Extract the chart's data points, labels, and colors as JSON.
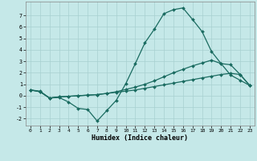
{
  "xlabel": "Humidex (Indice chaleur)",
  "bg_color": "#c5e8e8",
  "line_color": "#1a6b60",
  "grid_color": "#a8d0d0",
  "xlim": [
    -0.5,
    23.5
  ],
  "ylim": [
    -2.6,
    8.2
  ],
  "yticks": [
    -2,
    -1,
    0,
    1,
    2,
    3,
    4,
    5,
    6,
    7
  ],
  "xticks": [
    0,
    1,
    2,
    3,
    4,
    5,
    6,
    7,
    8,
    9,
    10,
    11,
    12,
    13,
    14,
    15,
    16,
    17,
    18,
    19,
    20,
    21,
    22,
    23
  ],
  "line1_x": [
    0,
    1,
    2,
    3,
    4,
    5,
    6,
    7,
    8,
    9,
    10,
    11,
    12,
    13,
    14,
    15,
    16,
    17,
    18,
    19,
    20,
    21,
    22,
    23
  ],
  "line1_y": [
    0.5,
    0.4,
    -0.2,
    -0.15,
    -0.55,
    -1.1,
    -1.2,
    -2.2,
    -1.3,
    -0.4,
    1.05,
    2.8,
    4.6,
    5.8,
    7.15,
    7.5,
    7.65,
    6.65,
    5.6,
    3.85,
    2.8,
    1.8,
    1.35,
    0.9
  ],
  "line2_x": [
    0,
    1,
    2,
    3,
    4,
    5,
    6,
    7,
    8,
    9,
    10,
    11,
    12,
    13,
    14,
    15,
    16,
    17,
    18,
    19,
    20,
    21,
    22,
    23
  ],
  "line2_y": [
    0.5,
    0.35,
    -0.2,
    -0.1,
    -0.05,
    0.0,
    0.05,
    0.1,
    0.2,
    0.35,
    0.55,
    0.75,
    1.0,
    1.3,
    1.65,
    2.0,
    2.3,
    2.6,
    2.85,
    3.1,
    2.8,
    2.7,
    1.85,
    0.9
  ],
  "line3_x": [
    0,
    1,
    2,
    3,
    4,
    5,
    6,
    7,
    8,
    9,
    10,
    11,
    12,
    13,
    14,
    15,
    16,
    17,
    18,
    19,
    20,
    21,
    22,
    23
  ],
  "line3_y": [
    0.5,
    0.35,
    -0.2,
    -0.1,
    -0.05,
    0.0,
    0.05,
    0.1,
    0.2,
    0.3,
    0.4,
    0.5,
    0.65,
    0.8,
    0.95,
    1.1,
    1.25,
    1.4,
    1.55,
    1.7,
    1.85,
    1.95,
    1.85,
    0.9
  ]
}
